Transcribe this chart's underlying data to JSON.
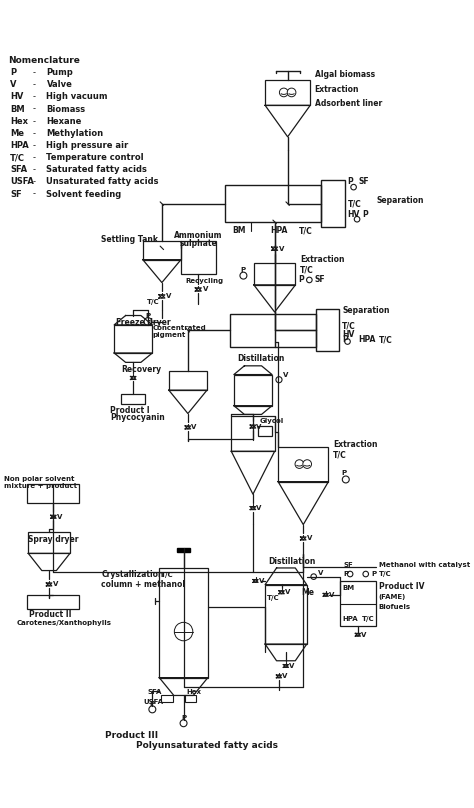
{
  "bg": "#ffffff",
  "lc": "#1a1a1a",
  "nomenclature": {
    "title": "Nomenclature",
    "items": [
      [
        "P",
        "Pump"
      ],
      [
        "V",
        "Valve"
      ],
      [
        "HV",
        "High vacuum"
      ],
      [
        "BM",
        "Biomass"
      ],
      [
        "Hex",
        "Hexane"
      ],
      [
        "Me",
        "Methylation"
      ],
      [
        "HPA",
        "High pressure air"
      ],
      [
        "T/C",
        "Temperature control"
      ],
      [
        "SFA",
        "Saturated fatty acids"
      ],
      [
        "USFA",
        "Unsaturated fatty acids"
      ],
      [
        "SF",
        "Solvent feeding"
      ]
    ]
  }
}
